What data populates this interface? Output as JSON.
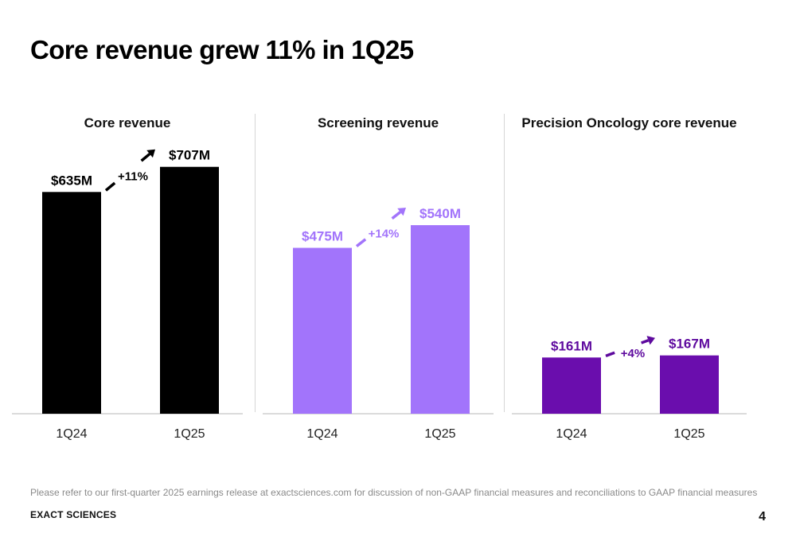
{
  "title": "Core revenue grew 11% in 1Q25",
  "footnote": "Please refer to our first-quarter 2025 earnings release at exactsciences.com for discussion of non-GAAP financial measures and reconciliations to GAAP financial measures",
  "brand": "EXACT SCIENCES",
  "page_number": "4",
  "chart_data": [
    {
      "type": "bar",
      "title": "Core revenue",
      "categories": [
        "1Q24",
        "1Q25"
      ],
      "values": [
        635,
        707
      ],
      "value_labels": [
        "$635M",
        "$707M"
      ],
      "change_label": "+11%",
      "color": "#000000",
      "label_color": "#000000",
      "arrow_color": "#000000",
      "ylim": [
        0,
        720
      ]
    },
    {
      "type": "bar",
      "title": "Screening revenue",
      "categories": [
        "1Q24",
        "1Q25"
      ],
      "values": [
        475,
        540
      ],
      "value_labels": [
        "$475M",
        "$540M"
      ],
      "change_label": "+14%",
      "color": "#a274fb",
      "label_color": "#a274fb",
      "arrow_color": "#a274fb",
      "ylim": [
        0,
        720
      ]
    },
    {
      "type": "bar",
      "title": "Precision Oncology core revenue",
      "categories": [
        "1Q24",
        "1Q25"
      ],
      "values": [
        161,
        167
      ],
      "value_labels": [
        "$161M",
        "$167M"
      ],
      "change_label": "+4%",
      "color": "#6a0dad",
      "label_color": "#5e0a9e",
      "arrow_color": "#5e0a9e",
      "ylim": [
        0,
        720
      ]
    }
  ]
}
